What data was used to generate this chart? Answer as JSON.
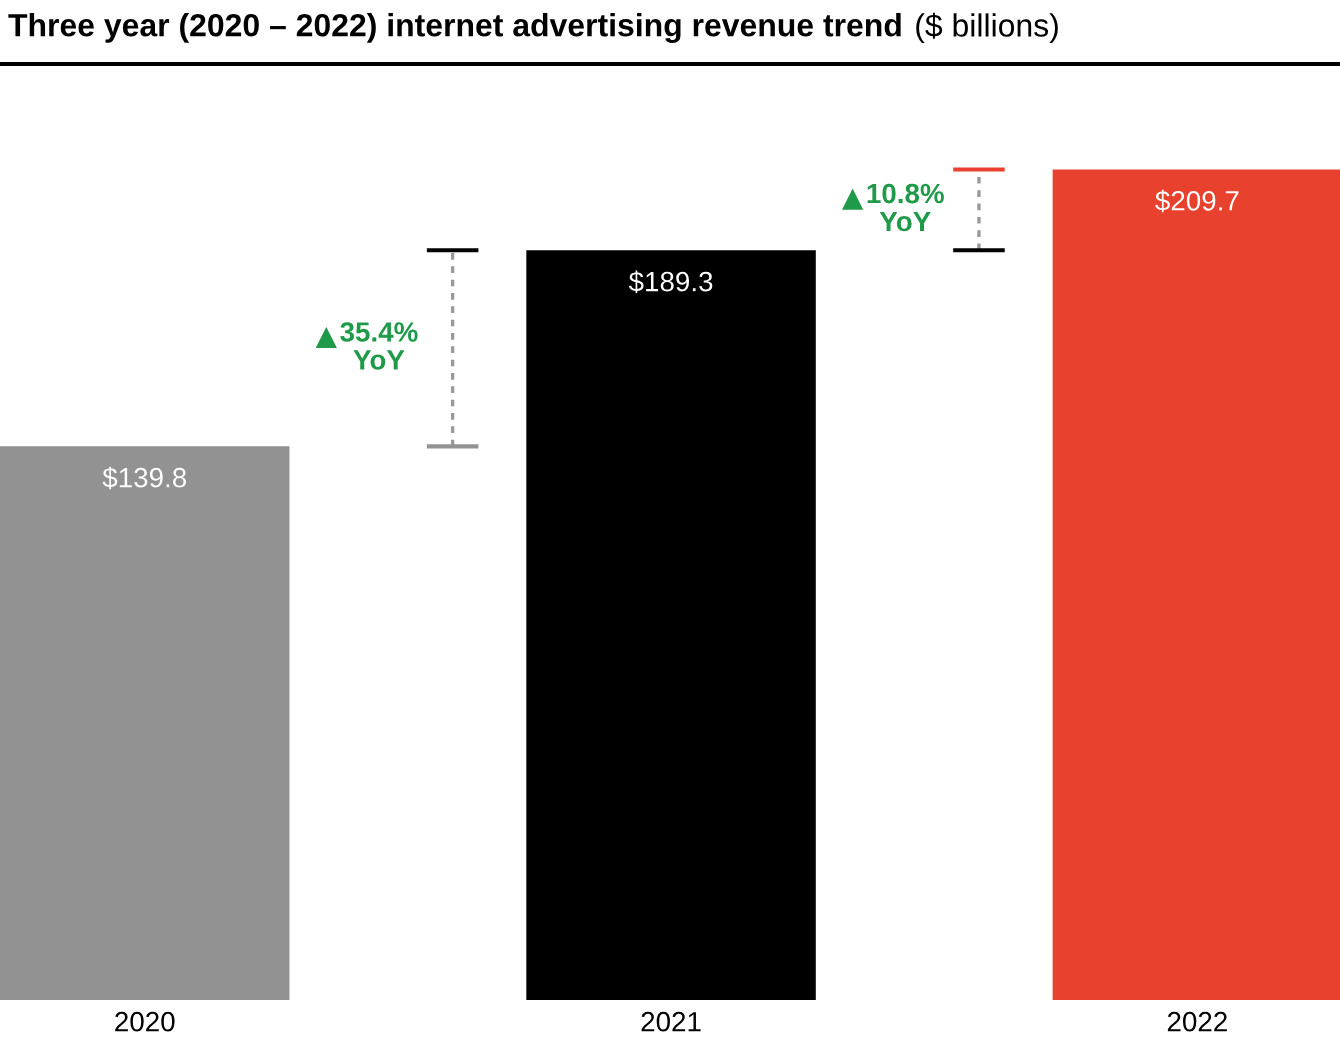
{
  "chart_data": {
    "type": "bar",
    "title": "Three year (2020 – 2022) internet advertising revenue trend",
    "subtitle": "($ billions)",
    "categories": [
      "2020",
      "2021",
      "2022"
    ],
    "values": [
      139.8,
      189.3,
      209.7
    ],
    "colors": [
      "#929292",
      "#000000",
      "#e8422f"
    ],
    "value_labels": [
      "$139.8",
      "$189.3",
      "$209.7"
    ],
    "annotations": [
      "35.4%\nYoY",
      "10.8%\nYoY"
    ],
    "grid": false,
    "tick_labels": "x"
  }
}
